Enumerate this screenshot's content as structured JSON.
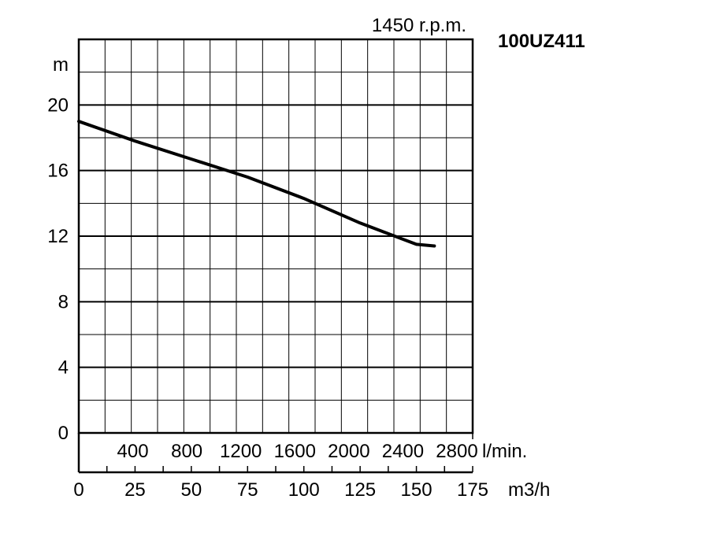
{
  "chart_data": {
    "type": "line",
    "title": "100UZ411",
    "subtitle": "1450 r.p.m.",
    "ylabel": "m",
    "xlabel": "m3/h",
    "x2label": "l/min.",
    "xlim": [
      0,
      175
    ],
    "ylim": [
      0,
      24
    ],
    "y_ticks": [
      0,
      4,
      8,
      12,
      16,
      20
    ],
    "x_ticks": [
      0,
      25,
      50,
      75,
      100,
      125,
      150,
      175
    ],
    "x2_ticks": [
      400,
      800,
      1200,
      1600,
      2000,
      2400,
      2800
    ],
    "grid": true,
    "series": [
      {
        "x": [
          0,
          25,
          50,
          75,
          100,
          125,
          150,
          158
        ],
        "y": [
          19.0,
          17.8,
          16.7,
          15.6,
          14.3,
          12.8,
          11.5,
          11.4
        ]
      }
    ]
  }
}
